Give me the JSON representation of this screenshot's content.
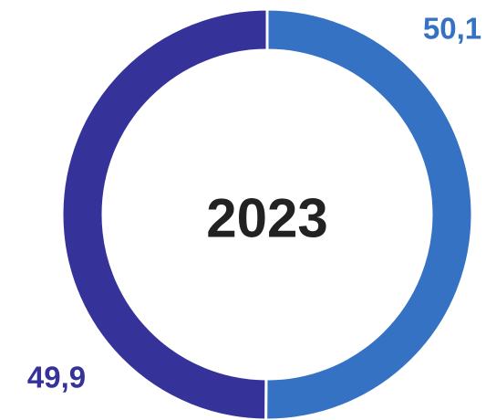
{
  "chart_data": {
    "type": "pie",
    "variant": "donut",
    "center_text": "2023",
    "slices": [
      {
        "value": 50.1,
        "label": "50,1",
        "color": "#3572C4"
      },
      {
        "value": 49.9,
        "label": "49,9",
        "color": "#35339A"
      }
    ],
    "start": "top",
    "direction": "clockwise",
    "separator_color": "#ffffff"
  }
}
